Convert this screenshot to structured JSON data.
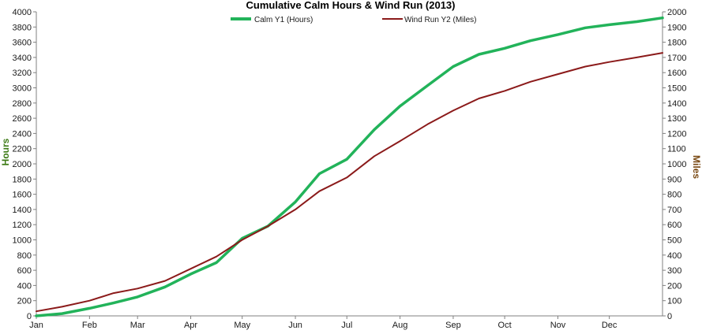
{
  "chart_data": {
    "type": "line",
    "title": "Cumulative Calm  Hours & Wind Run (2013)",
    "y1label": "Hours",
    "y2label": "Miles",
    "y1lim": [
      0,
      4000
    ],
    "y2lim": [
      0,
      2000
    ],
    "y1ticks": [
      0,
      200,
      400,
      600,
      800,
      1000,
      1200,
      1400,
      1600,
      1800,
      2000,
      2200,
      2400,
      2600,
      2800,
      3000,
      3200,
      3400,
      3600,
      3800,
      4000
    ],
    "y2ticks": [
      0,
      100,
      200,
      300,
      400,
      500,
      600,
      700,
      800,
      900,
      1000,
      1100,
      1200,
      1300,
      1400,
      1500,
      1600,
      1700,
      1800,
      1900,
      2000
    ],
    "xlim": [
      0,
      365
    ],
    "x_tick_labels": [
      "Jan",
      "Feb",
      "Mar",
      "Apr",
      "May",
      "Jun",
      "Jul",
      "Aug",
      "Sep",
      "Oct",
      "Nov",
      "Dec"
    ],
    "x_tick_days": [
      0,
      31,
      59,
      90,
      120,
      151,
      181,
      212,
      243,
      273,
      304,
      334
    ],
    "grid": false,
    "legend_position": "top",
    "colors": {
      "calm": "#22b35a",
      "wind": "#8b1a1a",
      "y1_axis": "#3c7a14",
      "y2_axis": "#7a4a14",
      "axis": "#808080"
    },
    "series": [
      {
        "name": "Calm Y1 (Hours)",
        "axis": "y1",
        "x": [
          0,
          15,
          31,
          45,
          59,
          75,
          90,
          105,
          120,
          135,
          151,
          165,
          181,
          197,
          212,
          228,
          243,
          258,
          273,
          288,
          304,
          320,
          334,
          350,
          365
        ],
        "y": [
          0,
          30,
          100,
          170,
          250,
          380,
          550,
          700,
          1020,
          1180,
          1500,
          1870,
          2060,
          2450,
          2760,
          3030,
          3280,
          3440,
          3520,
          3620,
          3700,
          3790,
          3830,
          3870,
          3920
        ]
      },
      {
        "name": "Wind Run Y2 (Miles)",
        "axis": "y2",
        "x": [
          0,
          15,
          31,
          45,
          59,
          75,
          90,
          105,
          120,
          135,
          151,
          165,
          181,
          197,
          212,
          228,
          243,
          258,
          273,
          288,
          304,
          320,
          334,
          350,
          365
        ],
        "y": [
          30,
          60,
          100,
          150,
          180,
          230,
          310,
          390,
          500,
          590,
          700,
          820,
          910,
          1050,
          1150,
          1260,
          1350,
          1430,
          1480,
          1540,
          1590,
          1640,
          1670,
          1700,
          1730
        ]
      }
    ]
  }
}
